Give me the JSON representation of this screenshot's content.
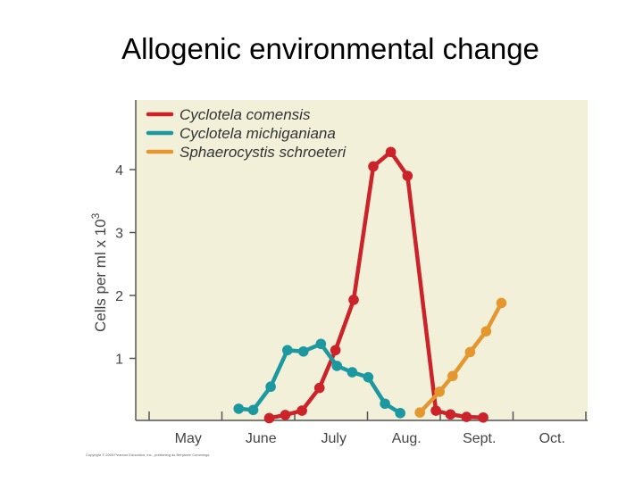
{
  "slide_title": "Allogenic environmental change",
  "copyright": "Copyright © 2005 Pearson Education, Inc., publishing as Benjamin Cummings",
  "colors": {
    "plot_bg": "#f3f0d9",
    "axis": "#555555",
    "Cyclotela comensis": "#cc2229",
    "Cyclotela michiganiana": "#1c98a0",
    "Sphaerocystis schroeteri": "#e3972e"
  },
  "chart_data": {
    "type": "line",
    "title": "",
    "xlabel": "",
    "ylabel_main": "Cells per ml x 10",
    "ylabel_exp": "3",
    "x_ticks": [
      {
        "value": 0,
        "label": ""
      },
      {
        "value": 1,
        "label": ""
      },
      {
        "value": 2,
        "label": ""
      },
      {
        "value": 3,
        "label": ""
      },
      {
        "value": 4,
        "label": ""
      },
      {
        "value": 5,
        "label": ""
      },
      {
        "value": 6,
        "label": ""
      }
    ],
    "x_month_labels": [
      {
        "value": 0.5,
        "label": "May"
      },
      {
        "value": 1.5,
        "label": "June"
      },
      {
        "value": 2.5,
        "label": "July"
      },
      {
        "value": 3.5,
        "label": "Aug."
      },
      {
        "value": 4.5,
        "label": "Sept."
      },
      {
        "value": 5.5,
        "label": "Oct."
      }
    ],
    "y_ticks": [
      1,
      2,
      3,
      4
    ],
    "xlim": [
      -0.18,
      6.0
    ],
    "ylim": [
      -0.03,
      5.15
    ],
    "series": [
      {
        "name": "Cyclotela comensis",
        "x": [
          1.65,
          1.87,
          2.1,
          2.34,
          2.56,
          2.81,
          3.08,
          3.32,
          3.55,
          3.94,
          4.14,
          4.36,
          4.59
        ],
        "y": [
          0.05,
          0.1,
          0.17,
          0.53,
          1.13,
          1.93,
          4.05,
          4.28,
          3.9,
          0.17,
          0.11,
          0.07,
          0.06
        ]
      },
      {
        "name": "Cyclotela michiganiana",
        "x": [
          1.23,
          1.43,
          1.67,
          1.9,
          2.12,
          2.36,
          2.58,
          2.79,
          3.01,
          3.24,
          3.45
        ],
        "y": [
          0.2,
          0.18,
          0.55,
          1.13,
          1.11,
          1.23,
          0.88,
          0.78,
          0.7,
          0.28,
          0.13
        ]
      },
      {
        "name": "Sphaerocystis schroeteri",
        "x": [
          3.72,
          3.99,
          4.17,
          4.41,
          4.63,
          4.84
        ],
        "y": [
          0.14,
          0.47,
          0.72,
          1.1,
          1.43,
          1.88
        ]
      }
    ]
  }
}
